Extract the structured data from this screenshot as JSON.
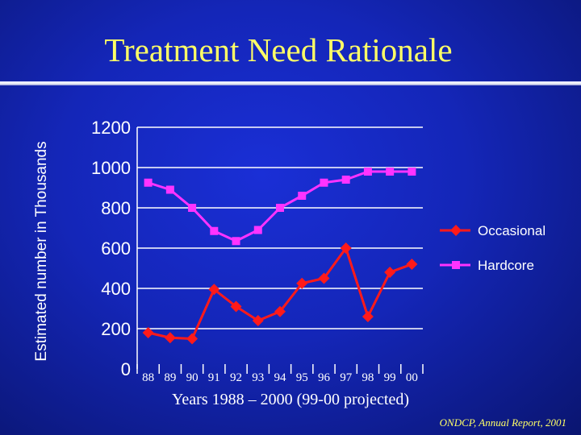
{
  "chart_data": {
    "type": "line",
    "title": "Treatment Need Rationale",
    "xlabel": "Years 1988 – 2000 (99-00 projected)",
    "ylabel": "Estimated number in Thousands",
    "categories": [
      "88",
      "89",
      "90",
      "91",
      "92",
      "93",
      "94",
      "95",
      "96",
      "97",
      "98",
      "99",
      "00"
    ],
    "yticks": [
      "0",
      "200",
      "400",
      "600",
      "800",
      "1000",
      "1200"
    ],
    "ylim": [
      0,
      1200
    ],
    "series": [
      {
        "name": "Occasional",
        "color": "#ff1a1a",
        "marker": "diamond",
        "values": [
          180,
          155,
          150,
          395,
          310,
          240,
          285,
          425,
          450,
          600,
          260,
          480,
          520
        ]
      },
      {
        "name": "Hardcore",
        "color": "#ff33ff",
        "marker": "square",
        "values": [
          925,
          890,
          800,
          685,
          635,
          690,
          800,
          860,
          925,
          940,
          980,
          980,
          980
        ]
      }
    ],
    "legend_position": "right",
    "grid": "horizontal"
  },
  "source_note": "ONDCP, Annual Report, 2001"
}
